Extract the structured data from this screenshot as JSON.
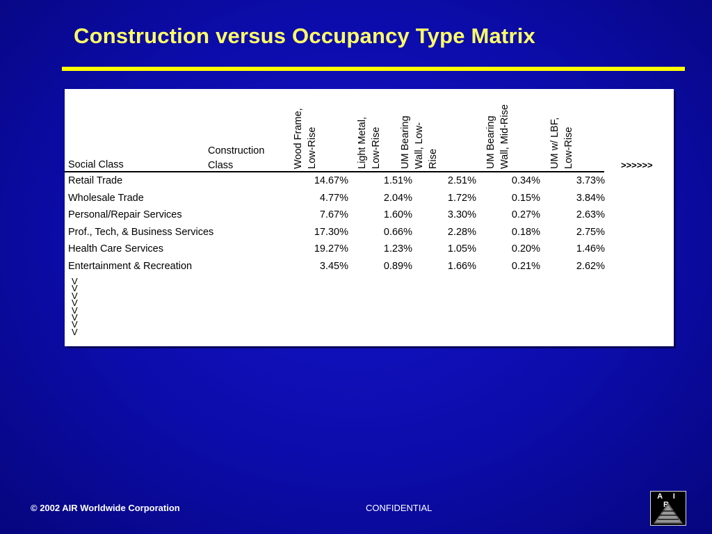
{
  "title": "Construction versus Occupancy Type Matrix",
  "table": {
    "social_class_header": "Social Class",
    "construction_class_header": "Construction\nClass",
    "columns": [
      "Wood Frame,\nLow-Rise",
      "Light Metal,\nLow-Rise",
      "UM Bearing\nWall, Low-\nRise",
      "UM Bearing\nWall, Mid-Rise",
      "UM w/ LBF,\nLow-Rise"
    ],
    "more_columns_indicator": ">>>>>>",
    "rows": [
      {
        "label": "Retail Trade",
        "values": [
          "14.67%",
          "1.51%",
          "2.51%",
          "0.34%",
          "3.73%"
        ]
      },
      {
        "label": "Wholesale Trade",
        "values": [
          "4.77%",
          "2.04%",
          "1.72%",
          "0.15%",
          "3.84%"
        ]
      },
      {
        "label": "Personal/Repair Services",
        "values": [
          "7.67%",
          "1.60%",
          "3.30%",
          "0.27%",
          "2.63%"
        ]
      },
      {
        "label": "Prof., Tech, & Business Services",
        "values": [
          "17.30%",
          "0.66%",
          "2.28%",
          "0.18%",
          "2.75%"
        ]
      },
      {
        "label": "Health Care Services",
        "values": [
          "19.27%",
          "1.23%",
          "1.05%",
          "0.20%",
          "1.46%"
        ]
      },
      {
        "label": "Entertainment & Recreation",
        "values": [
          "3.45%",
          "0.89%",
          "1.66%",
          "0.21%",
          "2.62%"
        ]
      }
    ],
    "more_rows_indicator": "V\nV\nV\nV\nV\nV\nV\nV"
  },
  "footer": {
    "copyright": "© 2002 AIR Worldwide Corporation",
    "confidential": "CONFIDENTIAL",
    "logo_text": "A I R"
  },
  "colors": {
    "background": "#0c0caa",
    "title": "#ffff66",
    "rule": "#ffff00",
    "panel": "#ffffff"
  }
}
